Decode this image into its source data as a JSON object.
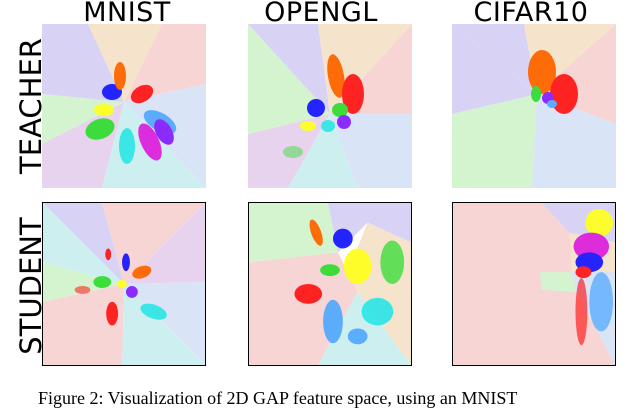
{
  "figure": {
    "columns": [
      "MNIST",
      "OPENGL",
      "CIFAR10"
    ],
    "rows": [
      "TEACHER",
      "STUDENT"
    ],
    "caption": "Figure 2: Visualization of 2D GAP feature space, using an MNIST"
  },
  "colors": {
    "blue": "#1a1aff",
    "orange": "#ff6600",
    "red": "#ff1a1a",
    "green": "#33dd33",
    "cyan": "#33e6e6",
    "magenta": "#dd22dd",
    "purple": "#8822ff",
    "yellow": "#ffff22",
    "sky": "#55aaff"
  }
}
